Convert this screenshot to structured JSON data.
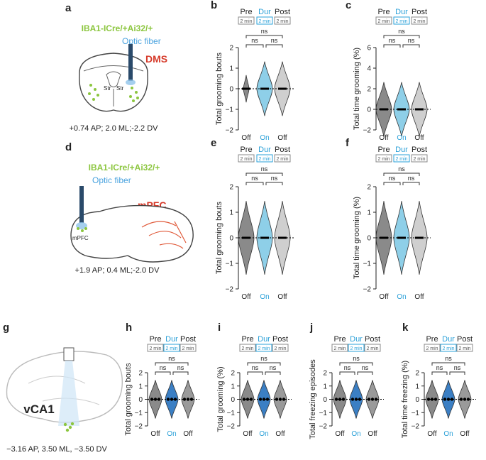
{
  "schematics": [
    {
      "letter": "a",
      "genotype": "IBA1-ICre/+Ai32/+",
      "fiber": "Optic fiber",
      "region": "DMS",
      "region_labels": [
        "Str",
        "Str"
      ],
      "coords": "+0.74 AP; 2.0 ML;-2.2 DV"
    },
    {
      "letter": "d",
      "genotype": "IBA1-ICre/+Ai32/+",
      "fiber": "Optic fiber",
      "region": "mPFC",
      "region_labels": [
        "mPFC"
      ],
      "coords": "+1.9 AP; 0.4 ML;-2.0 DV"
    },
    {
      "letter": "g",
      "region": "vCA1",
      "coords": "−3.16 AP, 3.50 ML, −3.50 DV"
    }
  ],
  "phases": [
    "Pre",
    "Dur",
    "Post"
  ],
  "duration": "2 min",
  "conditions": [
    "Off",
    "On",
    "Off"
  ],
  "significance": "ns",
  "plots": [
    {
      "letter": "b",
      "ylabel": "Total grooming bouts",
      "yticks": [
        2,
        1,
        0,
        {
          "value": -1,
          "label": "−1"
        },
        {
          "value": -2,
          "label": "−2"
        }
      ]
    },
    {
      "letter": "c",
      "ylabel": "Total time grooming (%)",
      "yticks": [
        6,
        4,
        2,
        0,
        {
          "value": -2,
          "label": "−2"
        }
      ]
    },
    {
      "letter": "e",
      "ylabel": "Total grooming bouts",
      "yticks": [
        2,
        1,
        0,
        {
          "value": -1,
          "label": "−1"
        },
        {
          "value": -2,
          "label": "−2"
        }
      ]
    },
    {
      "letter": "f",
      "ylabel": "Total time grooming (%)",
      "yticks": [
        2,
        1,
        0,
        {
          "value": -1,
          "label": "−1"
        },
        {
          "value": -2,
          "label": "−2"
        }
      ]
    },
    {
      "letter": "h",
      "ylabel": "Total grooming bouts",
      "yticks": [
        2,
        1,
        0,
        {
          "value": -1,
          "label": "−1"
        },
        {
          "value": -2,
          "label": "−2"
        }
      ]
    },
    {
      "letter": "i",
      "ylabel": "Total grooming (%)",
      "yticks": [
        2,
        1,
        0,
        {
          "value": -1,
          "label": "−1"
        },
        {
          "value": -2,
          "label": "−2"
        }
      ]
    },
    {
      "letter": "j",
      "ylabel": "Total freezing episodes",
      "yticks": [
        2,
        1,
        0,
        {
          "value": -1,
          "label": "−1"
        },
        {
          "value": -2,
          "label": "−2"
        }
      ]
    },
    {
      "letter": "k",
      "ylabel": "Total time freezing (%)",
      "yticks": [
        2,
        1,
        0,
        {
          "value": -1,
          "label": "−1"
        },
        {
          "value": -2,
          "label": "−2"
        }
      ]
    }
  ]
}
